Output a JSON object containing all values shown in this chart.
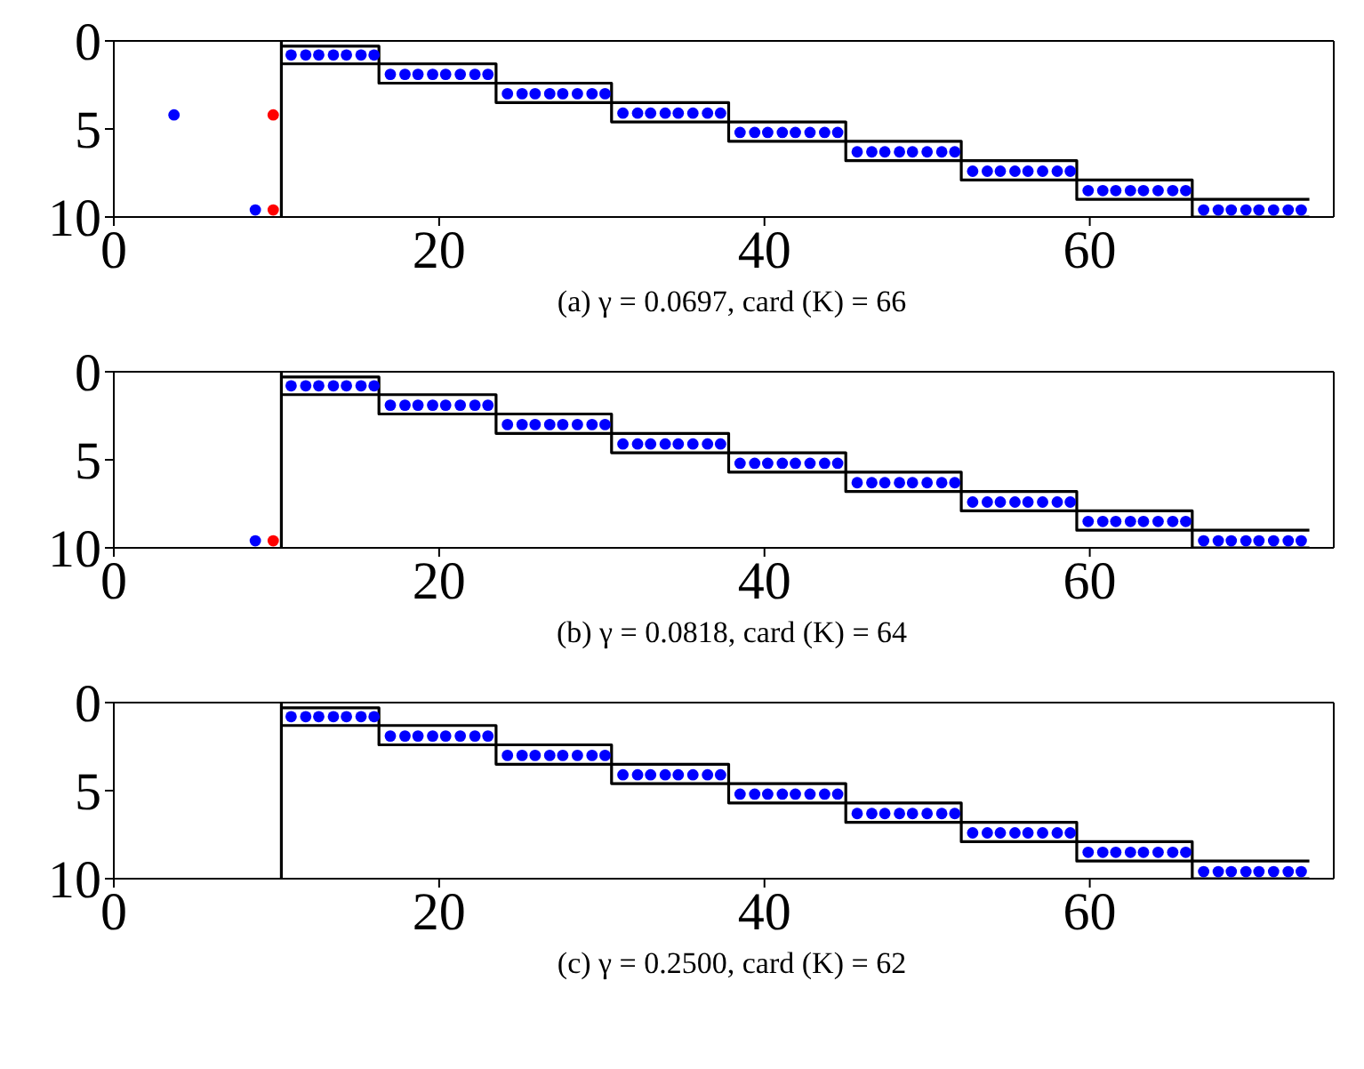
{
  "chart_data": [
    {
      "type": "scatter",
      "title": "(a) γ = 0.0697, card (K) = 66",
      "xlim": [
        0,
        75
      ],
      "xticks": [
        0,
        20,
        40,
        60
      ],
      "ylim": [
        10,
        0
      ],
      "yticks": [
        0,
        5,
        10
      ],
      "ref_lines": [
        {
          "axis": "x",
          "value": 10.3,
          "color": "#000000"
        }
      ],
      "series": [
        {
          "type": "step",
          "color": "#000000",
          "line_style": "solid",
          "x": [
            10.3,
            16.3,
            23.5,
            30.6,
            37.8,
            45.0,
            52.1,
            59.2,
            66.3,
            73.5
          ],
          "values": [
            0.3,
            1.3,
            2.4,
            3.5,
            4.6,
            5.7,
            6.8,
            7.9,
            9.0,
            9.0
          ]
        },
        {
          "type": "step",
          "color": "#000000",
          "line_style": "solid",
          "x": [
            10.3,
            16.3,
            23.5,
            30.6,
            37.8,
            45.0,
            52.1,
            59.2,
            66.3,
            73.5
          ],
          "values": [
            1.3,
            2.4,
            3.5,
            4.6,
            5.7,
            6.8,
            7.9,
            9.0,
            10.0,
            10.0
          ]
        },
        {
          "color": "#0000ff",
          "marker": "circle",
          "x": [
            3.7,
            8.7,
            10.9,
            11.8,
            12.6,
            13.5,
            14.3,
            15.2,
            16.0,
            17.0,
            17.9,
            18.7,
            19.6,
            20.4,
            21.3,
            22.2,
            23.0,
            24.2,
            25.1,
            25.9,
            26.8,
            27.6,
            28.5,
            29.4,
            30.2,
            31.3,
            32.2,
            33.0,
            33.9,
            34.7,
            35.6,
            36.5,
            37.3,
            38.5,
            39.4,
            40.2,
            41.1,
            41.9,
            42.8,
            43.7,
            44.5,
            45.7,
            46.6,
            47.4,
            48.3,
            49.1,
            50.0,
            50.9,
            51.7,
            52.8,
            53.7,
            54.5,
            55.4,
            56.2,
            57.1,
            58.0,
            58.8,
            59.9,
            60.8,
            61.6,
            62.5,
            63.3,
            64.2,
            65.1,
            65.9,
            67.0,
            67.9,
            68.7,
            69.6,
            70.4,
            71.3,
            72.2,
            73.0
          ],
          "values": [
            4.2,
            9.6,
            0.8,
            0.8,
            0.8,
            0.8,
            0.8,
            0.8,
            0.8,
            1.9,
            1.9,
            1.9,
            1.9,
            1.9,
            1.9,
            1.9,
            1.9,
            3.0,
            3.0,
            3.0,
            3.0,
            3.0,
            3.0,
            3.0,
            3.0,
            4.1,
            4.1,
            4.1,
            4.1,
            4.1,
            4.1,
            4.1,
            4.1,
            5.2,
            5.2,
            5.2,
            5.2,
            5.2,
            5.2,
            5.2,
            5.2,
            6.3,
            6.3,
            6.3,
            6.3,
            6.3,
            6.3,
            6.3,
            6.3,
            7.4,
            7.4,
            7.4,
            7.4,
            7.4,
            7.4,
            7.4,
            7.4,
            8.5,
            8.5,
            8.5,
            8.5,
            8.5,
            8.5,
            8.5,
            8.5,
            9.6,
            9.6,
            9.6,
            9.6,
            9.6,
            9.6,
            9.6,
            9.6
          ]
        },
        {
          "color": "#ff0000",
          "marker": "circle",
          "x": [
            9.8,
            9.8
          ],
          "values": [
            4.2,
            9.6
          ]
        }
      ]
    },
    {
      "type": "scatter",
      "title": "(b) γ = 0.0818, card (K) = 64",
      "xlim": [
        0,
        75
      ],
      "xticks": [
        0,
        20,
        40,
        60
      ],
      "ylim": [
        10,
        0
      ],
      "yticks": [
        0,
        5,
        10
      ],
      "ref_lines": [
        {
          "axis": "x",
          "value": 10.3,
          "color": "#000000"
        }
      ],
      "series": [
        {
          "type": "step",
          "color": "#000000",
          "line_style": "solid",
          "x": [
            10.3,
            16.3,
            23.5,
            30.6,
            37.8,
            45.0,
            52.1,
            59.2,
            66.3,
            73.5
          ],
          "values": [
            0.3,
            1.3,
            2.4,
            3.5,
            4.6,
            5.7,
            6.8,
            7.9,
            9.0,
            9.0
          ]
        },
        {
          "type": "step",
          "color": "#000000",
          "line_style": "solid",
          "x": [
            10.3,
            16.3,
            23.5,
            30.6,
            37.8,
            45.0,
            52.1,
            59.2,
            66.3,
            73.5
          ],
          "values": [
            1.3,
            2.4,
            3.5,
            4.6,
            5.7,
            6.8,
            7.9,
            9.0,
            10.0,
            10.0
          ]
        },
        {
          "color": "#0000ff",
          "marker": "circle",
          "x": [
            8.7,
            10.9,
            11.8,
            12.6,
            13.5,
            14.3,
            15.2,
            16.0,
            17.0,
            17.9,
            18.7,
            19.6,
            20.4,
            21.3,
            22.2,
            23.0,
            24.2,
            25.1,
            25.9,
            26.8,
            27.6,
            28.5,
            29.4,
            30.2,
            31.3,
            32.2,
            33.0,
            33.9,
            34.7,
            35.6,
            36.5,
            37.3,
            38.5,
            39.4,
            40.2,
            41.1,
            41.9,
            42.8,
            43.7,
            44.5,
            45.7,
            46.6,
            47.4,
            48.3,
            49.1,
            50.0,
            50.9,
            51.7,
            52.8,
            53.7,
            54.5,
            55.4,
            56.2,
            57.1,
            58.0,
            58.8,
            59.9,
            60.8,
            61.6,
            62.5,
            63.3,
            64.2,
            65.1,
            65.9,
            67.0,
            67.9,
            68.7,
            69.6,
            70.4,
            71.3,
            72.2,
            73.0
          ],
          "values": [
            9.6,
            0.8,
            0.8,
            0.8,
            0.8,
            0.8,
            0.8,
            0.8,
            1.9,
            1.9,
            1.9,
            1.9,
            1.9,
            1.9,
            1.9,
            1.9,
            3.0,
            3.0,
            3.0,
            3.0,
            3.0,
            3.0,
            3.0,
            3.0,
            4.1,
            4.1,
            4.1,
            4.1,
            4.1,
            4.1,
            4.1,
            4.1,
            5.2,
            5.2,
            5.2,
            5.2,
            5.2,
            5.2,
            5.2,
            5.2,
            6.3,
            6.3,
            6.3,
            6.3,
            6.3,
            6.3,
            6.3,
            6.3,
            7.4,
            7.4,
            7.4,
            7.4,
            7.4,
            7.4,
            7.4,
            7.4,
            8.5,
            8.5,
            8.5,
            8.5,
            8.5,
            8.5,
            8.5,
            8.5,
            9.6,
            9.6,
            9.6,
            9.6,
            9.6,
            9.6,
            9.6,
            9.6
          ]
        },
        {
          "color": "#ff0000",
          "marker": "circle",
          "x": [
            9.8
          ],
          "values": [
            9.6
          ]
        }
      ]
    },
    {
      "type": "scatter",
      "title": "(c) γ = 0.2500, card (K) = 62",
      "xlim": [
        0,
        75
      ],
      "xticks": [
        0,
        20,
        40,
        60
      ],
      "ylim": [
        10,
        0
      ],
      "yticks": [
        0,
        5,
        10
      ],
      "ref_lines": [
        {
          "axis": "x",
          "value": 10.3,
          "color": "#000000"
        }
      ],
      "series": [
        {
          "type": "step",
          "color": "#000000",
          "line_style": "solid",
          "x": [
            10.3,
            16.3,
            23.5,
            30.6,
            37.8,
            45.0,
            52.1,
            59.2,
            66.3,
            73.5
          ],
          "values": [
            0.3,
            1.3,
            2.4,
            3.5,
            4.6,
            5.7,
            6.8,
            7.9,
            9.0,
            9.0
          ]
        },
        {
          "type": "step",
          "color": "#000000",
          "line_style": "solid",
          "x": [
            10.3,
            16.3,
            23.5,
            30.6,
            37.8,
            45.0,
            52.1,
            59.2,
            66.3,
            73.5
          ],
          "values": [
            1.3,
            2.4,
            3.5,
            4.6,
            5.7,
            6.8,
            7.9,
            9.0,
            10.0,
            10.0
          ]
        },
        {
          "color": "#0000ff",
          "marker": "circle",
          "x": [
            10.9,
            11.8,
            12.6,
            13.5,
            14.3,
            15.2,
            16.0,
            17.0,
            17.9,
            18.7,
            19.6,
            20.4,
            21.3,
            22.2,
            23.0,
            24.2,
            25.1,
            25.9,
            26.8,
            27.6,
            28.5,
            29.4,
            30.2,
            31.3,
            32.2,
            33.0,
            33.9,
            34.7,
            35.6,
            36.5,
            37.3,
            38.5,
            39.4,
            40.2,
            41.1,
            41.9,
            42.8,
            43.7,
            44.5,
            45.7,
            46.6,
            47.4,
            48.3,
            49.1,
            50.0,
            50.9,
            51.7,
            52.8,
            53.7,
            54.5,
            55.4,
            56.2,
            57.1,
            58.0,
            58.8,
            59.9,
            60.8,
            61.6,
            62.5,
            63.3,
            64.2,
            65.1,
            65.9,
            67.0,
            67.9,
            68.7,
            69.6,
            70.4,
            71.3,
            72.2,
            73.0
          ],
          "values": [
            0.8,
            0.8,
            0.8,
            0.8,
            0.8,
            0.8,
            0.8,
            1.9,
            1.9,
            1.9,
            1.9,
            1.9,
            1.9,
            1.9,
            1.9,
            3.0,
            3.0,
            3.0,
            3.0,
            3.0,
            3.0,
            3.0,
            3.0,
            4.1,
            4.1,
            4.1,
            4.1,
            4.1,
            4.1,
            4.1,
            4.1,
            5.2,
            5.2,
            5.2,
            5.2,
            5.2,
            5.2,
            5.2,
            5.2,
            6.3,
            6.3,
            6.3,
            6.3,
            6.3,
            6.3,
            6.3,
            6.3,
            7.4,
            7.4,
            7.4,
            7.4,
            7.4,
            7.4,
            7.4,
            7.4,
            8.5,
            8.5,
            8.5,
            8.5,
            8.5,
            8.5,
            8.5,
            8.5,
            9.6,
            9.6,
            9.6,
            9.6,
            9.6,
            9.6,
            9.6,
            9.6
          ]
        }
      ]
    }
  ]
}
